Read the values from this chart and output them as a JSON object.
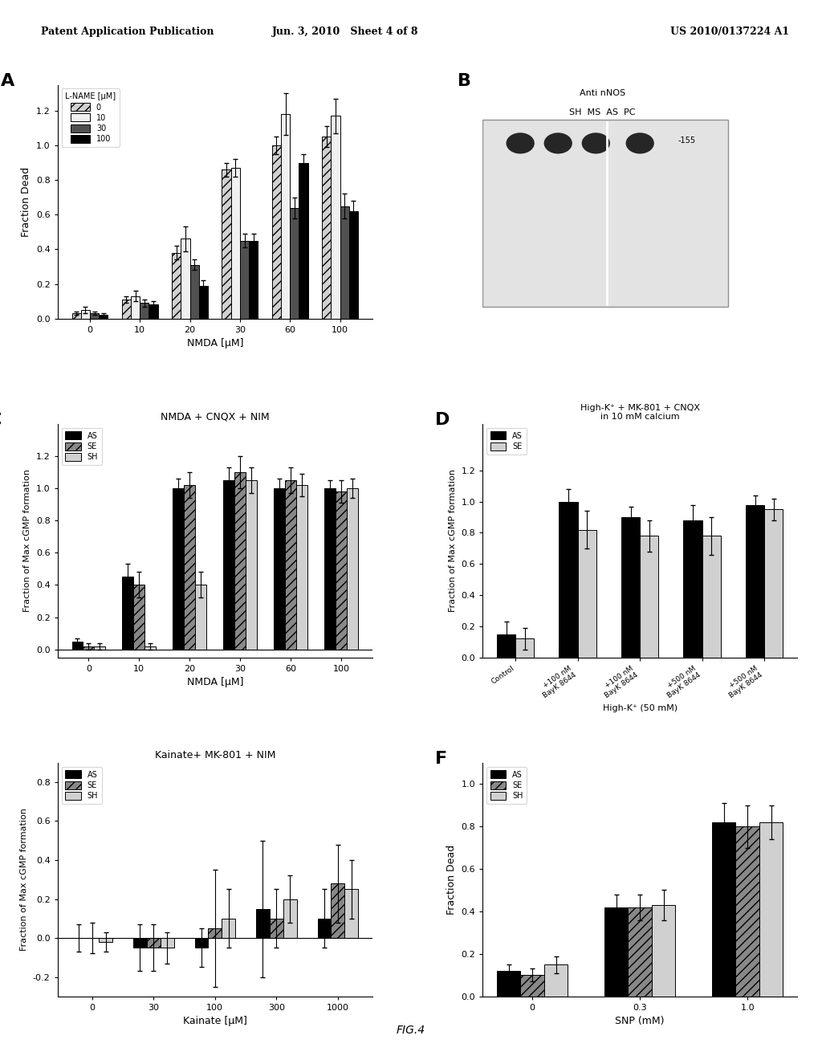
{
  "header_left": "Patent Application Publication",
  "header_mid": "Jun. 3, 2010   Sheet 4 of 8",
  "header_right": "US 2010/0137224 A1",
  "footer": "FIG.4",
  "panel_A": {
    "title": "",
    "xlabel": "NMDA [μM]",
    "ylabel": "Fraction Dead",
    "xlabels": [
      "0",
      "10",
      "20",
      "30",
      "60",
      "100"
    ],
    "legend_title": "L-NAME [μM]",
    "legend_labels": [
      "0",
      "10",
      "30",
      "100"
    ],
    "ylim": [
      0,
      1.35
    ],
    "yticks": [
      0.0,
      0.2,
      0.4,
      0.6,
      0.8,
      1.0,
      1.2
    ],
    "data": {
      "0": [
        0.03,
        0.11,
        0.38,
        0.86,
        1.0,
        1.05
      ],
      "10": [
        0.05,
        0.13,
        0.46,
        0.87,
        1.18,
        1.17
      ],
      "30": [
        0.03,
        0.09,
        0.31,
        0.45,
        0.64,
        0.65
      ],
      "100": [
        0.02,
        0.08,
        0.19,
        0.45,
        0.9,
        0.62
      ]
    },
    "errors": {
      "0": [
        0.01,
        0.02,
        0.04,
        0.04,
        0.05,
        0.06
      ],
      "10": [
        0.02,
        0.03,
        0.07,
        0.05,
        0.12,
        0.1
      ],
      "30": [
        0.01,
        0.02,
        0.03,
        0.04,
        0.06,
        0.07
      ],
      "100": [
        0.01,
        0.02,
        0.03,
        0.04,
        0.05,
        0.06
      ]
    },
    "colors": [
      "#d0d0d0",
      "#f0f0f0",
      "#505050",
      "#000000"
    ],
    "hatches": [
      "///",
      "",
      "",
      ""
    ]
  },
  "panel_B": {
    "label": "Anti nNOS",
    "sublabel": "SH  MS  AS  PC",
    "band_label": "-155"
  },
  "panel_C": {
    "title": "NMDA + CNQX + NIM",
    "xlabel": "NMDA [μM]",
    "ylabel": "Fraction of Max cGMP formation",
    "xlabels": [
      "0",
      "10",
      "20",
      "30",
      "60",
      "100"
    ],
    "legend_labels": [
      "AS",
      "SE",
      "SH"
    ],
    "ylim": [
      -0.05,
      1.4
    ],
    "yticks": [
      0.0,
      0.2,
      0.4,
      0.6,
      0.8,
      1.0,
      1.2
    ],
    "data": {
      "AS": [
        0.05,
        0.45,
        1.0,
        1.05,
        1.0,
        1.0
      ],
      "SE": [
        0.02,
        0.4,
        1.02,
        1.1,
        1.05,
        0.98
      ],
      "SH": [
        0.02,
        0.02,
        0.4,
        1.05,
        1.02,
        1.0
      ]
    },
    "errors": {
      "AS": [
        0.02,
        0.08,
        0.06,
        0.08,
        0.06,
        0.05
      ],
      "SE": [
        0.02,
        0.08,
        0.08,
        0.1,
        0.08,
        0.07
      ],
      "SH": [
        0.02,
        0.02,
        0.08,
        0.08,
        0.07,
        0.06
      ]
    },
    "colors": [
      "#000000",
      "#888888",
      "#d0d0d0"
    ],
    "hatches": [
      "",
      "///",
      ""
    ]
  },
  "panel_D": {
    "title": "High-K⁺ + MK-801 + CNQX\nin 10 mM calcium",
    "xlabel": "High-K⁺ (50 mM)",
    "ylabel": "Fraction of Max cGMP formation",
    "xlabels": [
      "Control",
      "+100 nM\nBayK 8644",
      "+100 nM\nBayK 8644",
      "+500 nM\nBayK 8644",
      "+500 nM\nBayK 8644"
    ],
    "legend_labels": [
      "AS",
      "SE"
    ],
    "ylim": [
      0,
      1.5
    ],
    "yticks": [
      0.0,
      0.2,
      0.4,
      0.6,
      0.8,
      1.0,
      1.2
    ],
    "data": {
      "AS": [
        0.15,
        1.0,
        0.9,
        0.88,
        0.98
      ],
      "SE": [
        0.12,
        0.82,
        0.78,
        0.78,
        0.95
      ]
    },
    "errors": {
      "AS": [
        0.08,
        0.08,
        0.07,
        0.1,
        0.06
      ],
      "SE": [
        0.07,
        0.12,
        0.1,
        0.12,
        0.07
      ]
    },
    "colors": [
      "#000000",
      "#d0d0d0"
    ],
    "hatches": [
      "",
      ""
    ]
  },
  "panel_E": {
    "title": "Kainate+ MK-801 + NIM",
    "xlabel": "Kainate [μM]",
    "ylabel": "Fraction of Max cGMP formation",
    "xlabels": [
      "0",
      "30",
      "100",
      "300",
      "1000"
    ],
    "legend_labels": [
      "AS",
      "SE",
      "SH"
    ],
    "ylim": [
      -0.3,
      0.9
    ],
    "yticks": [
      -0.2,
      0.0,
      0.2,
      0.4,
      0.6,
      0.8
    ],
    "data": {
      "AS": [
        0.0,
        -0.05,
        -0.05,
        0.15,
        0.1
      ],
      "SE": [
        0.0,
        -0.05,
        0.05,
        0.1,
        0.28
      ],
      "SH": [
        -0.02,
        -0.05,
        0.1,
        0.2,
        0.25
      ]
    },
    "errors": {
      "AS": [
        0.07,
        0.12,
        0.1,
        0.35,
        0.15
      ],
      "SE": [
        0.08,
        0.12,
        0.3,
        0.15,
        0.2
      ],
      "SH": [
        0.05,
        0.08,
        0.15,
        0.12,
        0.15
      ]
    },
    "colors": [
      "#000000",
      "#888888",
      "#d0d0d0"
    ],
    "hatches": [
      "",
      "///",
      ""
    ]
  },
  "panel_F": {
    "title": "",
    "xlabel": "SNP (mM)",
    "ylabel": "Fraction Dead",
    "xlabels": [
      "0",
      "0.3",
      "1.0"
    ],
    "legend_labels": [
      "AS",
      "SE",
      "SH"
    ],
    "ylim": [
      0,
      1.1
    ],
    "yticks": [
      0.0,
      0.2,
      0.4,
      0.6,
      0.8,
      1.0
    ],
    "data": {
      "AS": [
        0.12,
        0.42,
        0.82
      ],
      "SE": [
        0.1,
        0.42,
        0.8
      ],
      "SH": [
        0.15,
        0.43,
        0.82
      ]
    },
    "errors": {
      "AS": [
        0.03,
        0.06,
        0.09
      ],
      "SE": [
        0.03,
        0.06,
        0.1
      ],
      "SH": [
        0.04,
        0.07,
        0.08
      ]
    },
    "colors": [
      "#000000",
      "#888888",
      "#d0d0d0"
    ],
    "hatches": [
      "",
      "///",
      ""
    ]
  }
}
